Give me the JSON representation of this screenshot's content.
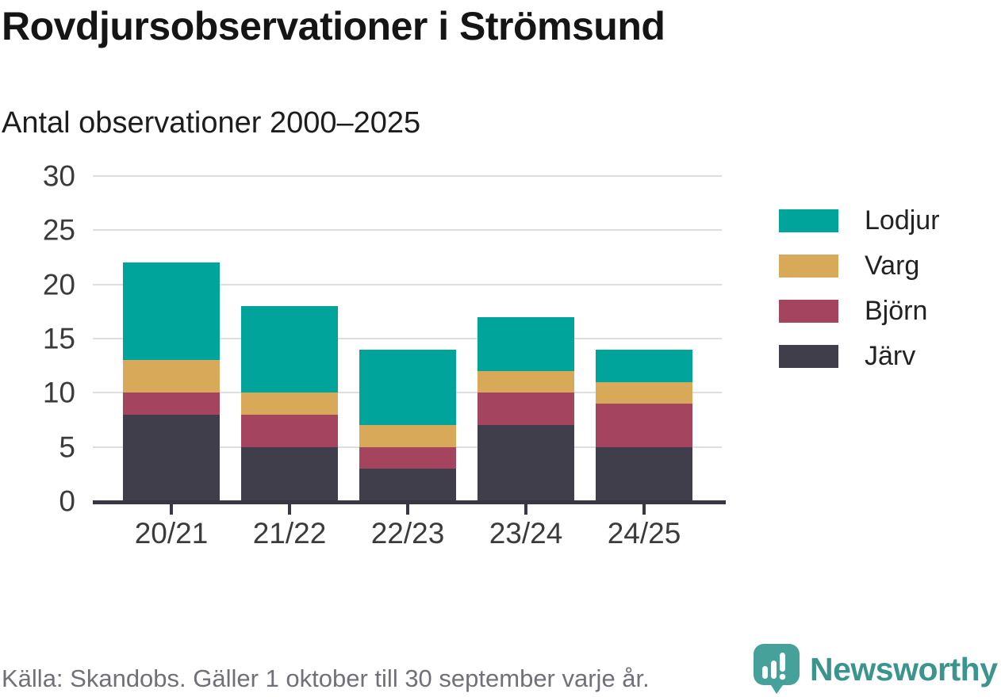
{
  "header": {
    "title": "Rovdjursobservationer i Strömsund",
    "subtitle": "Antal observationer 2000–2025"
  },
  "chart_data": {
    "type": "bar",
    "stacked": true,
    "title": "Rovdjursobservationer i Strömsund",
    "subtitle": "Antal observationer 2000–2025",
    "categories": [
      "20/21",
      "21/22",
      "22/23",
      "23/24",
      "24/25"
    ],
    "series": [
      {
        "name": "Järv",
        "color": "#413e4c",
        "values": [
          8,
          5,
          3,
          7,
          5
        ]
      },
      {
        "name": "Björn",
        "color": "#a5445e",
        "values": [
          2,
          3,
          2,
          3,
          4
        ]
      },
      {
        "name": "Varg",
        "color": "#d9a95a",
        "values": [
          3,
          2,
          2,
          2,
          2
        ]
      },
      {
        "name": "Lodjur",
        "color": "#00a49b",
        "values": [
          9,
          8,
          7,
          5,
          3
        ]
      }
    ],
    "stack_order": "bottom-to-top",
    "totals": [
      22,
      18,
      14,
      17,
      14
    ],
    "legend_order": [
      "Lodjur",
      "Varg",
      "Björn",
      "Järv"
    ],
    "legend_position": "right",
    "xlabel": "",
    "ylabel": "",
    "ylim": [
      0,
      30
    ],
    "yticks": [
      0,
      5,
      10,
      15,
      20,
      25,
      30
    ],
    "grid": "horizontal"
  },
  "footer": {
    "source": "Källa: Skandobs. Gäller 1 oktober till 30 september varje år.",
    "brand": "Newsworthy",
    "brand_icon": "speech-bubble-bar-chart-exclamation"
  },
  "colors": {
    "lodjur": "#00a49b",
    "varg": "#d9a95a",
    "bjorn": "#a5445e",
    "jarv": "#413e4c",
    "axis": "#3a3744",
    "grid": "#dedede",
    "title_text": "#151515",
    "tick_text": "#3b3b3b",
    "footer_text": "#716f78",
    "brand_teal": "#3b948d",
    "logo_teal": "#45a19a"
  }
}
